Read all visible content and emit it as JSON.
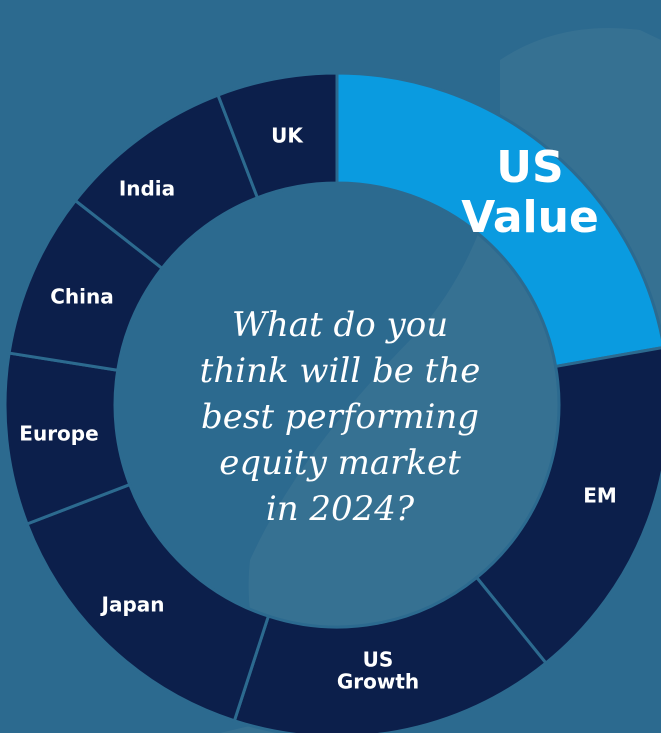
{
  "segments": [
    {
      "lines": [
        "US",
        "Value"
      ]
    },
    {
      "lines": [
        "EM"
      ]
    },
    {
      "lines": [
        "US",
        "Growth"
      ]
    },
    {
      "lines": [
        "Japan"
      ]
    },
    {
      "lines": [
        "Europe"
      ]
    },
    {
      "lines": [
        "China"
      ]
    },
    {
      "lines": [
        "India"
      ]
    },
    {
      "lines": [
        "UK"
      ]
    }
  ],
  "question": {
    "lines": [
      "What do you",
      "think will be the",
      "best performing",
      "equity market",
      "in 2024?"
    ]
  }
}
